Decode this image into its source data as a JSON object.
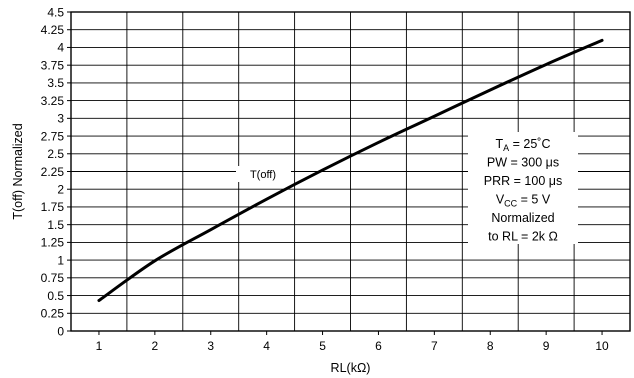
{
  "chart_data": {
    "type": "line",
    "xlabel": "RL(kΩ)",
    "ylabel": "T(off) Normalized",
    "xlim": [
      0.5,
      10.5
    ],
    "ylim": [
      0,
      4.5
    ],
    "x_ticks": [
      1,
      2,
      3,
      4,
      5,
      6,
      7,
      8,
      9,
      10
    ],
    "x_tick_labels": [
      "1",
      "2",
      "3",
      "4",
      "5",
      "6",
      "7",
      "8",
      "9",
      "10"
    ],
    "y_ticks": [
      0,
      0.25,
      0.5,
      0.75,
      1,
      1.25,
      1.5,
      1.75,
      2,
      2.25,
      2.5,
      2.75,
      3,
      3.25,
      3.5,
      3.75,
      4,
      4.25,
      4.5
    ],
    "y_tick_labels": [
      "0",
      "0.25",
      "0.5",
      "0.75",
      "1",
      "1.25",
      "1.5",
      "1.75",
      "2",
      "2.25",
      "2.5",
      "2.75",
      "3",
      "3.25",
      "3.5",
      "3.75",
      "4",
      "4.25",
      "4.5"
    ],
    "grid": true,
    "series": [
      {
        "name": "T(off)",
        "x": [
          1,
          2,
          3,
          4,
          5,
          6,
          7,
          8,
          9,
          10
        ],
        "y": [
          0.43,
          0.99,
          1.43,
          1.86,
          2.27,
          2.66,
          3.03,
          3.4,
          3.76,
          4.1
        ]
      }
    ],
    "annotation_lines": [
      {
        "main": "T",
        "sub": "A",
        "rest": " = 25˚C"
      },
      {
        "main": "PW = 300 μs",
        "sub": "",
        "rest": ""
      },
      {
        "main": "PRR = 100 μs",
        "sub": "",
        "rest": ""
      },
      {
        "main": "V",
        "sub": "CC",
        "rest": " = 5 V"
      },
      {
        "main": "Normalized",
        "sub": "",
        "rest": ""
      },
      {
        "main": "to RL = 2k Ω",
        "sub": "",
        "rest": ""
      }
    ]
  }
}
